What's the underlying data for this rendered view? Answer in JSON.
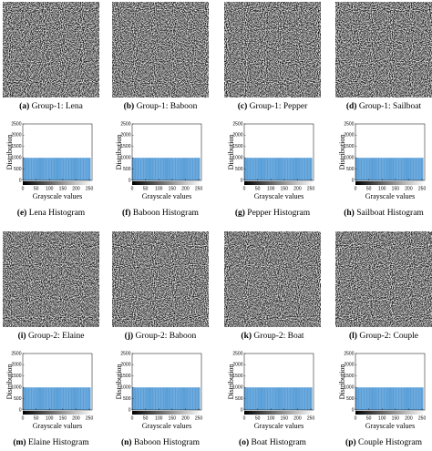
{
  "images": [
    {
      "label": "(a)",
      "caption": "Group-1: Lena"
    },
    {
      "label": "(b)",
      "caption": "Group-1: Baboon"
    },
    {
      "label": "(c)",
      "caption": "Group-1: Pepper"
    },
    {
      "label": "(d)",
      "caption": "Group-1: Sailboat"
    },
    {
      "label": "(i)",
      "caption": "Group-2: Elaine"
    },
    {
      "label": "(j)",
      "caption": "Group-2: Baboon"
    },
    {
      "label": "(k)",
      "caption": "Group-2: Boat"
    },
    {
      "label": "(l)",
      "caption": "Group-2: Couple"
    }
  ],
  "chart_data": [
    {
      "type": "histogram",
      "label": "(e)",
      "title": "Lena Histogram",
      "xlabel": "Grayscale values",
      "ylabel": "Distribution",
      "color": "#5a9fd8",
      "bins": [
        0,
        5,
        10,
        15,
        20,
        25,
        30,
        35,
        40,
        45,
        50,
        55,
        60,
        65,
        70,
        75,
        80,
        85,
        90,
        95,
        100,
        105,
        110,
        115,
        120,
        125,
        130,
        135,
        140,
        145,
        150,
        155,
        160,
        165,
        170,
        175,
        180,
        185,
        190,
        195,
        200,
        205,
        210,
        215,
        220,
        225,
        230,
        235,
        240,
        245,
        250,
        255
      ],
      "values": [
        1000,
        1000,
        1000,
        1000,
        1000,
        1000,
        1000,
        1000,
        1000,
        1000,
        1000,
        1000,
        1000,
        1000,
        1000,
        1000,
        1000,
        1000,
        1000,
        1000,
        1000,
        1000,
        1000,
        1000,
        1000,
        1000,
        1000,
        1000,
        1000,
        1000,
        1000,
        1000,
        1000,
        1000,
        1000,
        1000,
        1000,
        1000,
        1000,
        1000,
        1000,
        1000,
        1000,
        1000,
        1000,
        1000,
        1000,
        1000,
        1000,
        1000,
        1000
      ],
      "xlim": [
        0,
        260
      ],
      "ylim": [
        0,
        2500
      ],
      "xticks": [
        0,
        50,
        100,
        150,
        200,
        250
      ],
      "yticks": [
        0,
        500,
        1000,
        1500,
        2000,
        2500
      ]
    },
    {
      "type": "histogram",
      "label": "(f)",
      "title": "Baboon Histogram",
      "xlabel": "Grayscale values",
      "ylabel": "Distribution",
      "color": "#5a9fd8",
      "bins": [
        0,
        5,
        10,
        15,
        20,
        25,
        30,
        35,
        40,
        45,
        50,
        55,
        60,
        65,
        70,
        75,
        80,
        85,
        90,
        95,
        100,
        105,
        110,
        115,
        120,
        125,
        130,
        135,
        140,
        145,
        150,
        155,
        160,
        165,
        170,
        175,
        180,
        185,
        190,
        195,
        200,
        205,
        210,
        215,
        220,
        225,
        230,
        235,
        240,
        245,
        250,
        255
      ],
      "values": [
        1000,
        1000,
        1000,
        1000,
        1000,
        1000,
        1000,
        1000,
        1000,
        1000,
        1000,
        1000,
        1000,
        1000,
        1000,
        1000,
        1000,
        1000,
        1000,
        1000,
        1000,
        1000,
        1000,
        1000,
        1000,
        1000,
        1000,
        1000,
        1000,
        1000,
        1000,
        1000,
        1000,
        1000,
        1000,
        1000,
        1000,
        1000,
        1000,
        1000,
        1000,
        1000,
        1000,
        1000,
        1000,
        1000,
        1000,
        1000,
        1000,
        1000,
        1000
      ],
      "xlim": [
        0,
        260
      ],
      "ylim": [
        0,
        2500
      ],
      "xticks": [
        0,
        50,
        100,
        150,
        200,
        250
      ],
      "yticks": [
        0,
        500,
        1000,
        1500,
        2000,
        2500
      ]
    },
    {
      "type": "histogram",
      "label": "(g)",
      "title": "Pepper Histogram",
      "xlabel": "Grayscale values",
      "ylabel": "Distribution",
      "color": "#5a9fd8",
      "bins": [
        0,
        5,
        10,
        15,
        20,
        25,
        30,
        35,
        40,
        45,
        50,
        55,
        60,
        65,
        70,
        75,
        80,
        85,
        90,
        95,
        100,
        105,
        110,
        115,
        120,
        125,
        130,
        135,
        140,
        145,
        150,
        155,
        160,
        165,
        170,
        175,
        180,
        185,
        190,
        195,
        200,
        205,
        210,
        215,
        220,
        225,
        230,
        235,
        240,
        245,
        250,
        255
      ],
      "values": [
        1000,
        1000,
        1000,
        1000,
        1000,
        1000,
        1000,
        1000,
        1000,
        1000,
        1000,
        1000,
        1000,
        1000,
        1000,
        1000,
        1000,
        1000,
        1000,
        1000,
        1000,
        1000,
        1000,
        1000,
        1000,
        1000,
        1000,
        1000,
        1000,
        1000,
        1000,
        1000,
        1000,
        1000,
        1000,
        1000,
        1000,
        1000,
        1000,
        1000,
        1000,
        1000,
        1000,
        1000,
        1000,
        1000,
        1000,
        1000,
        1000,
        1000,
        1000
      ],
      "xlim": [
        0,
        260
      ],
      "ylim": [
        0,
        2500
      ],
      "xticks": [
        0,
        50,
        100,
        150,
        200,
        250
      ],
      "yticks": [
        0,
        500,
        1000,
        1500,
        2000,
        2500
      ]
    },
    {
      "type": "histogram",
      "label": "(h)",
      "title": "Sailboat Histogram",
      "xlabel": "Grayscale values",
      "ylabel": "Distribution",
      "color": "#5a9fd8",
      "bins": [
        0,
        5,
        10,
        15,
        20,
        25,
        30,
        35,
        40,
        45,
        50,
        55,
        60,
        65,
        70,
        75,
        80,
        85,
        90,
        95,
        100,
        105,
        110,
        115,
        120,
        125,
        130,
        135,
        140,
        145,
        150,
        155,
        160,
        165,
        170,
        175,
        180,
        185,
        190,
        195,
        200,
        205,
        210,
        215,
        220,
        225,
        230,
        235,
        240,
        245,
        250,
        255
      ],
      "values": [
        1000,
        1000,
        1000,
        1000,
        1000,
        1000,
        1000,
        1000,
        1000,
        1000,
        1000,
        1000,
        1000,
        1000,
        1000,
        1000,
        1000,
        1000,
        1000,
        1000,
        1000,
        1000,
        1000,
        1000,
        1000,
        1000,
        1000,
        1000,
        1000,
        1000,
        1000,
        1000,
        1000,
        1000,
        1000,
        1000,
        1000,
        1000,
        1000,
        1000,
        1000,
        1000,
        1000,
        1000,
        1000,
        1000,
        1000,
        1000,
        1000,
        1000,
        1000
      ],
      "xlim": [
        0,
        260
      ],
      "ylim": [
        0,
        2500
      ],
      "xticks": [
        0,
        50,
        100,
        150,
        200,
        250
      ],
      "yticks": [
        0,
        500,
        1000,
        1500,
        2000,
        2500
      ]
    },
    {
      "type": "histogram",
      "label": "(m)",
      "title": "Elaine Histogram",
      "xlabel": "Grayscale values",
      "ylabel": "Distribution",
      "color": "#5a9fd8",
      "bins": [
        0,
        5,
        10,
        15,
        20,
        25,
        30,
        35,
        40,
        45,
        50,
        55,
        60,
        65,
        70,
        75,
        80,
        85,
        90,
        95,
        100,
        105,
        110,
        115,
        120,
        125,
        130,
        135,
        140,
        145,
        150,
        155,
        160,
        165,
        170,
        175,
        180,
        185,
        190,
        195,
        200,
        205,
        210,
        215,
        220,
        225,
        230,
        235,
        240,
        245,
        250,
        255
      ],
      "values": [
        1000,
        1000,
        1000,
        1000,
        1000,
        1000,
        1000,
        1000,
        1000,
        1000,
        1000,
        1000,
        1000,
        1000,
        1000,
        1000,
        1000,
        1000,
        1000,
        1000,
        1000,
        1000,
        1000,
        1000,
        1000,
        1000,
        1000,
        1000,
        1000,
        1000,
        1000,
        1000,
        1000,
        1000,
        1000,
        1000,
        1000,
        1000,
        1000,
        1000,
        1000,
        1000,
        1000,
        1000,
        1000,
        1000,
        1000,
        1000,
        1000,
        1000,
        1000
      ],
      "xlim": [
        0,
        260
      ],
      "ylim": [
        0,
        2500
      ],
      "xticks": [
        0,
        50,
        100,
        150,
        200,
        250
      ],
      "yticks": [
        0,
        500,
        1000,
        1500,
        2000,
        2500
      ]
    },
    {
      "type": "histogram",
      "label": "(n)",
      "title": "Baboon Histogram",
      "xlabel": "Grayscale values",
      "ylabel": "Distribution",
      "color": "#5a9fd8",
      "bins": [
        0,
        5,
        10,
        15,
        20,
        25,
        30,
        35,
        40,
        45,
        50,
        55,
        60,
        65,
        70,
        75,
        80,
        85,
        90,
        95,
        100,
        105,
        110,
        115,
        120,
        125,
        130,
        135,
        140,
        145,
        150,
        155,
        160,
        165,
        170,
        175,
        180,
        185,
        190,
        195,
        200,
        205,
        210,
        215,
        220,
        225,
        230,
        235,
        240,
        245,
        250,
        255
      ],
      "values": [
        1000,
        1000,
        1000,
        1000,
        1000,
        1000,
        1000,
        1000,
        1000,
        1000,
        1000,
        1000,
        1000,
        1000,
        1000,
        1000,
        1000,
        1000,
        1000,
        1000,
        1000,
        1000,
        1000,
        1000,
        1000,
        1000,
        1000,
        1000,
        1000,
        1000,
        1000,
        1000,
        1000,
        1000,
        1000,
        1000,
        1000,
        1000,
        1000,
        1000,
        1000,
        1000,
        1000,
        1000,
        1000,
        1000,
        1000,
        1000,
        1000,
        1000,
        1000
      ],
      "xlim": [
        0,
        260
      ],
      "ylim": [
        0,
        2500
      ],
      "xticks": [
        0,
        50,
        100,
        150,
        200,
        250
      ],
      "yticks": [
        0,
        500,
        1000,
        1500,
        2000,
        2500
      ]
    },
    {
      "type": "histogram",
      "label": "(o)",
      "title": "Boat Histogram",
      "xlabel": "Grayscale values",
      "ylabel": "Distribution",
      "color": "#5a9fd8",
      "bins": [
        0,
        5,
        10,
        15,
        20,
        25,
        30,
        35,
        40,
        45,
        50,
        55,
        60,
        65,
        70,
        75,
        80,
        85,
        90,
        95,
        100,
        105,
        110,
        115,
        120,
        125,
        130,
        135,
        140,
        145,
        150,
        155,
        160,
        165,
        170,
        175,
        180,
        185,
        190,
        195,
        200,
        205,
        210,
        215,
        220,
        225,
        230,
        235,
        240,
        245,
        250,
        255
      ],
      "values": [
        1000,
        1000,
        1000,
        1000,
        1000,
        1000,
        1000,
        1000,
        1000,
        1000,
        1000,
        1000,
        1000,
        1000,
        1000,
        1000,
        1000,
        1000,
        1000,
        1000,
        1000,
        1000,
        1000,
        1000,
        1000,
        1000,
        1000,
        1000,
        1000,
        1000,
        1000,
        1000,
        1000,
        1000,
        1000,
        1000,
        1000,
        1000,
        1000,
        1000,
        1000,
        1000,
        1000,
        1000,
        1000,
        1000,
        1000,
        1000,
        1000,
        1000,
        1000
      ],
      "xlim": [
        0,
        260
      ],
      "ylim": [
        0,
        2500
      ],
      "xticks": [
        0,
        50,
        100,
        150,
        200,
        250
      ],
      "yticks": [
        0,
        500,
        1000,
        1500,
        2000,
        2500
      ]
    },
    {
      "type": "histogram",
      "label": "(p)",
      "title": "Couple Histogram",
      "xlabel": "Grayscale values",
      "ylabel": "Distribution",
      "color": "#5a9fd8",
      "bins": [
        0,
        5,
        10,
        15,
        20,
        25,
        30,
        35,
        40,
        45,
        50,
        55,
        60,
        65,
        70,
        75,
        80,
        85,
        90,
        95,
        100,
        105,
        110,
        115,
        120,
        125,
        130,
        135,
        140,
        145,
        150,
        155,
        160,
        165,
        170,
        175,
        180,
        185,
        190,
        195,
        200,
        205,
        210,
        215,
        220,
        225,
        230,
        235,
        240,
        245,
        250,
        255
      ],
      "values": [
        1000,
        1000,
        1000,
        1000,
        1000,
        1000,
        1000,
        1000,
        1000,
        1000,
        1000,
        1000,
        1000,
        1000,
        1000,
        1000,
        1000,
        1000,
        1000,
        1000,
        1000,
        1000,
        1000,
        1000,
        1000,
        1000,
        1000,
        1000,
        1000,
        1000,
        1000,
        1000,
        1000,
        1000,
        1000,
        1000,
        1000,
        1000,
        1000,
        1000,
        1000,
        1000,
        1000,
        1000,
        1000,
        1000,
        1000,
        1000,
        1000,
        1000,
        1000
      ],
      "xlim": [
        0,
        260
      ],
      "ylim": [
        0,
        2500
      ],
      "xticks": [
        0,
        50,
        100,
        150,
        200,
        250
      ],
      "yticks": [
        0,
        500,
        1000,
        1500,
        2000,
        2500
      ]
    }
  ]
}
